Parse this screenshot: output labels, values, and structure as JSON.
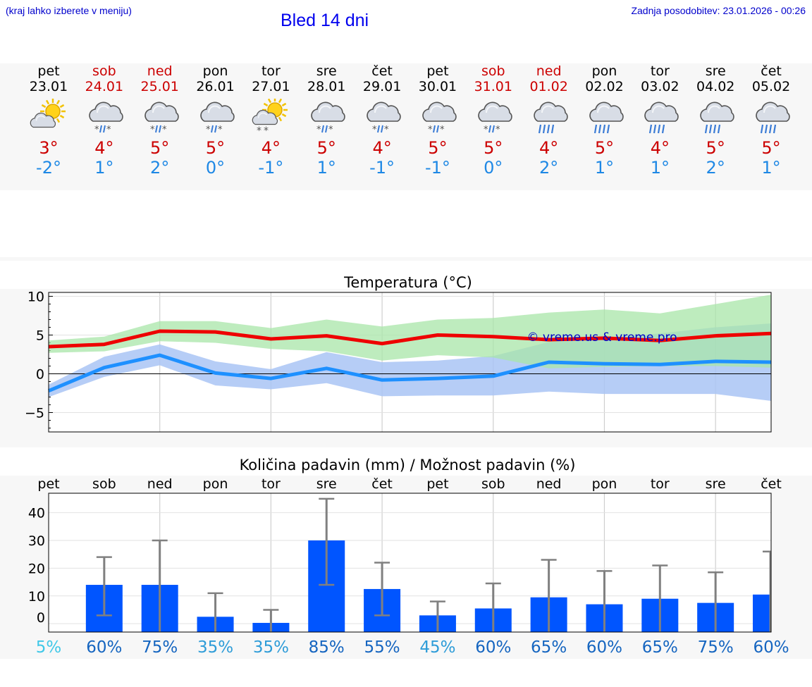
{
  "header": {
    "hint": "(kraj lahko izberete v meniju)",
    "title": "Bled 14 dni",
    "updated": "Zadnja posodobitev: 23.01.2026 - 00:26"
  },
  "days": [
    {
      "name": "pet",
      "date": "23.01",
      "weekend": false,
      "icon": "sun-cloud-icon",
      "max": "3°",
      "min": "-2°"
    },
    {
      "name": "sob",
      "date": "24.01",
      "weekend": true,
      "icon": "cloud-snow-rain-icon",
      "max": "4°",
      "min": "1°"
    },
    {
      "name": "ned",
      "date": "25.01",
      "weekend": true,
      "icon": "cloud-snow-rain-icon",
      "max": "5°",
      "min": "2°"
    },
    {
      "name": "pon",
      "date": "26.01",
      "weekend": false,
      "icon": "cloud-snow-rain-icon",
      "max": "5°",
      "min": "0°"
    },
    {
      "name": "tor",
      "date": "27.01",
      "weekend": false,
      "icon": "sun-cloud-snow-icon",
      "max": "4°",
      "min": "-1°"
    },
    {
      "name": "sre",
      "date": "28.01",
      "weekend": false,
      "icon": "cloud-snow-rain-icon",
      "max": "5°",
      "min": "1°"
    },
    {
      "name": "čet",
      "date": "29.01",
      "weekend": false,
      "icon": "cloud-snow-rain-icon",
      "max": "4°",
      "min": "-1°"
    },
    {
      "name": "pet",
      "date": "30.01",
      "weekend": false,
      "icon": "cloud-snow-rain-icon",
      "max": "5°",
      "min": "-1°"
    },
    {
      "name": "sob",
      "date": "31.01",
      "weekend": true,
      "icon": "cloud-snow-rain-icon",
      "max": "5°",
      "min": "0°"
    },
    {
      "name": "ned",
      "date": "01.02",
      "weekend": true,
      "icon": "cloud-rain-icon",
      "max": "4°",
      "min": "2°"
    },
    {
      "name": "pon",
      "date": "02.02",
      "weekend": false,
      "icon": "cloud-rain-icon",
      "max": "5°",
      "min": "1°"
    },
    {
      "name": "tor",
      "date": "03.02",
      "weekend": false,
      "icon": "cloud-rain-icon",
      "max": "4°",
      "min": "1°"
    },
    {
      "name": "sre",
      "date": "04.02",
      "weekend": false,
      "icon": "cloud-rain-icon",
      "max": "5°",
      "min": "2°"
    },
    {
      "name": "čet",
      "date": "05.02",
      "weekend": false,
      "icon": "cloud-rain-icon",
      "max": "5°",
      "min": "1°"
    }
  ],
  "colors": {
    "max_line": "#ee0000",
    "min_line": "#1e90ff",
    "max_band": "#a8e6a8",
    "min_band": "#a9c4f5",
    "overlap_band": "#79c2a6",
    "bar": "#0055ff",
    "error_bar": "#808080",
    "weekend": "#cc0000"
  },
  "chart_data": [
    {
      "type": "line",
      "title": "Temperatura (°C)",
      "watermark": "© vreme.us & vreme.pro",
      "ylim": [
        -7.5,
        10.5
      ],
      "yticks": [
        "10",
        "5",
        "0",
        "−5"
      ],
      "ytick_values": [
        10,
        5,
        0,
        -5
      ],
      "x": [
        0,
        1,
        2,
        3,
        4,
        5,
        6,
        7,
        8,
        9,
        10,
        11,
        12,
        13
      ],
      "series": [
        {
          "name": "max",
          "values": [
            3.5,
            3.8,
            5.5,
            5.4,
            4.5,
            4.9,
            3.9,
            5.0,
            4.8,
            4.4,
            4.6,
            4.3,
            4.9,
            5.2
          ]
        },
        {
          "name": "min",
          "values": [
            -2.2,
            0.8,
            2.4,
            0.1,
            -0.6,
            0.7,
            -0.8,
            -0.6,
            -0.3,
            1.5,
            1.3,
            1.2,
            1.6,
            1.5
          ]
        }
      ],
      "max_band": {
        "low": [
          2.7,
          2.9,
          4.2,
          4.0,
          3.2,
          2.9,
          1.7,
          2.4,
          2.1,
          0.7,
          0.9,
          1.0,
          1.0,
          0.8
        ],
        "high": [
          4.3,
          4.8,
          6.8,
          6.8,
          5.9,
          7.0,
          6.1,
          7.0,
          7.2,
          7.9,
          8.3,
          7.8,
          9.0,
          10.2
        ]
      },
      "min_band": {
        "low": [
          -3.0,
          -0.4,
          1.1,
          -1.5,
          -2.0,
          -1.2,
          -2.9,
          -2.8,
          -2.8,
          -2.3,
          -2.6,
          -2.6,
          -2.6,
          -3.5
        ],
        "high": [
          -1.4,
          2.2,
          3.8,
          1.6,
          0.6,
          2.8,
          1.5,
          1.7,
          2.3,
          4.1,
          4.6,
          5.2,
          6.0,
          6.5
        ]
      }
    },
    {
      "type": "bar",
      "title": "Količina padavin (mm) / Možnost padavin (%)",
      "categories": [
        "pet",
        "sob",
        "ned",
        "pon",
        "tor",
        "sre",
        "čet",
        "pet",
        "sob",
        "ned",
        "pon",
        "tor",
        "sre",
        "čet"
      ],
      "ylim": [
        -3,
        47
      ],
      "yticks": [
        "40",
        "30",
        "20",
        "10",
        "0"
      ],
      "ytick_values": [
        40,
        30,
        20,
        10,
        0
      ],
      "values": [
        0,
        14,
        14,
        2.5,
        0.3,
        30,
        12.5,
        3,
        5.5,
        9.5,
        7,
        9,
        7.5,
        10.5
      ],
      "error_low": [
        null,
        3,
        0,
        0,
        0,
        14,
        3,
        0,
        0,
        0,
        0,
        0,
        0,
        0
      ],
      "error_high": [
        null,
        24,
        30,
        11,
        5,
        45,
        22,
        8,
        14.5,
        23,
        19,
        21,
        18.5,
        26
      ],
      "probabilities": [
        "5%",
        "60%",
        "75%",
        "35%",
        "35%",
        "85%",
        "55%",
        "45%",
        "60%",
        "65%",
        "60%",
        "65%",
        "75%",
        "60%"
      ],
      "probability_colors": [
        "#40c8e8",
        "#1565c0",
        "#1565c0",
        "#2e9cd8",
        "#2e9cd8",
        "#1565c0",
        "#1565c0",
        "#2e9cd8",
        "#1565c0",
        "#1565c0",
        "#1565c0",
        "#1565c0",
        "#1565c0",
        "#1565c0"
      ]
    }
  ]
}
